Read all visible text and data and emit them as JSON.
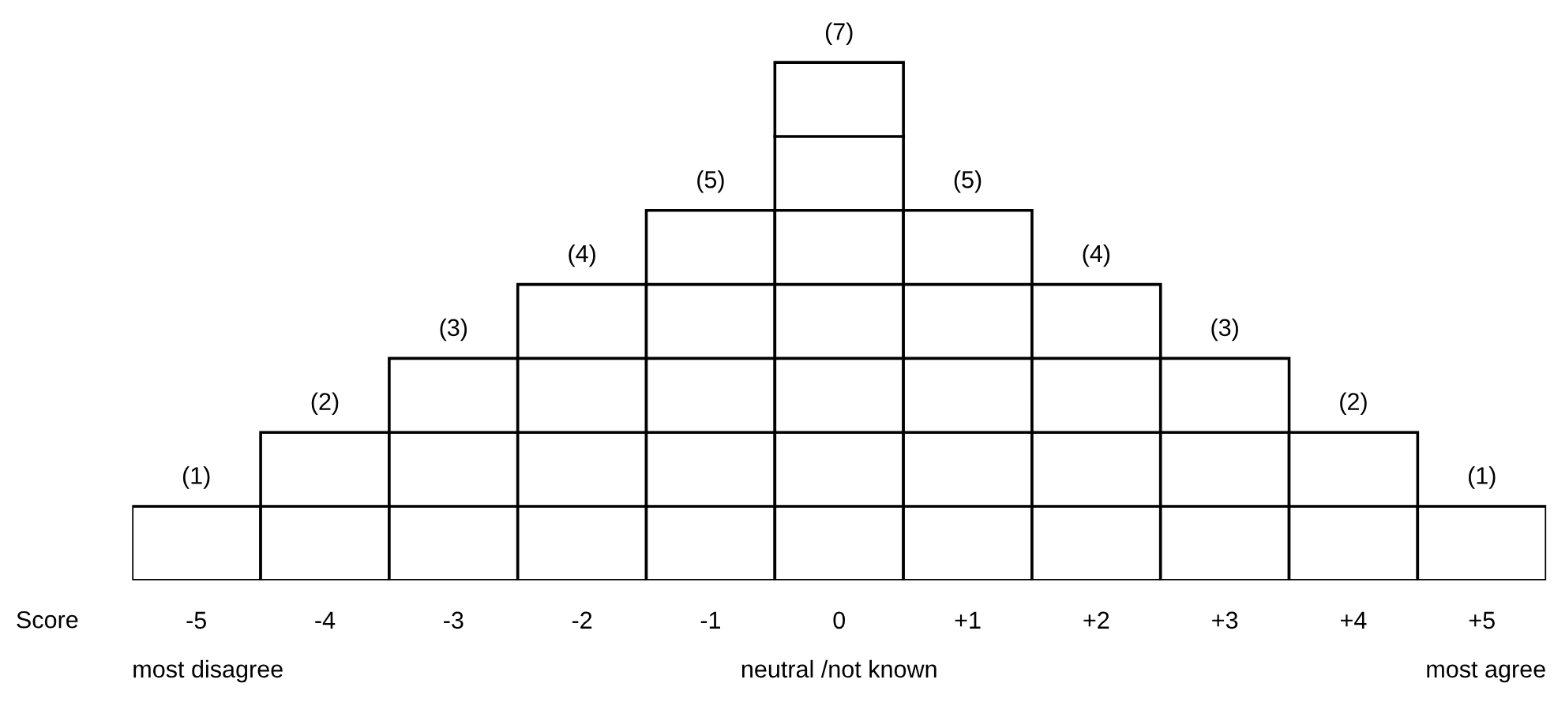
{
  "chart_data": {
    "type": "bar",
    "xlabel": "Score",
    "categories": [
      "-5",
      "-4",
      "-3",
      "-2",
      "-1",
      "0",
      "+1",
      "+2",
      "+3",
      "+4",
      "+5"
    ],
    "values": [
      1,
      2,
      3,
      4,
      5,
      7,
      5,
      4,
      3,
      2,
      1
    ],
    "color": "#ffffff",
    "value_labels": [
      "(1)",
      "(2)",
      "(3)",
      "(4)",
      "(5)",
      "(7)",
      "(5)",
      "(4)",
      "(3)",
      "(2)",
      "(1)"
    ],
    "annotations": [
      "most disagree",
      "neutral /not known",
      "most agree"
    ],
    "tick_labels": "x"
  }
}
